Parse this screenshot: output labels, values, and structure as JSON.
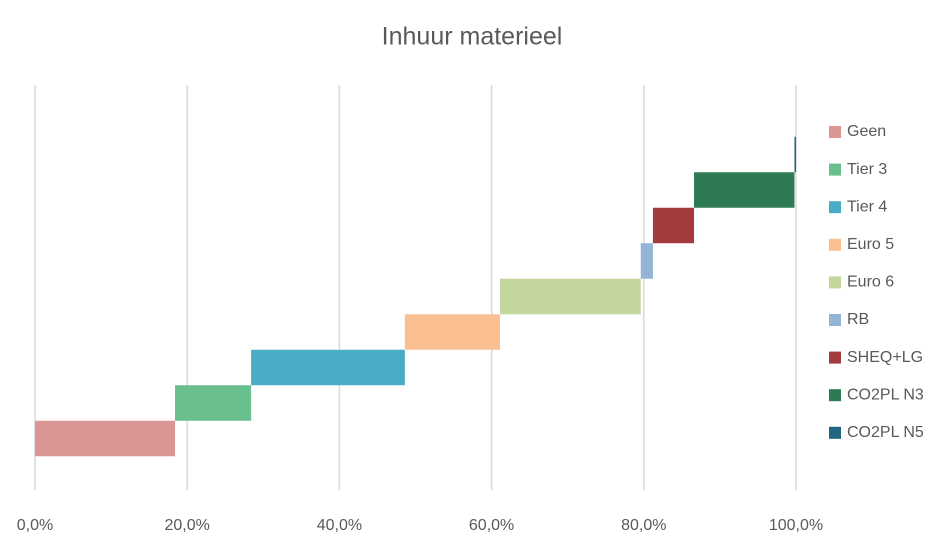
{
  "chart_data": {
    "type": "waterfall",
    "orientation": "horizontal",
    "title": "Inhuur materieel",
    "series": [
      {
        "name": "Geen",
        "color": "#d99694",
        "values": [
          18.4
        ]
      },
      {
        "name": "Tier 3",
        "color": "#6abf8e",
        "values": [
          10.0
        ]
      },
      {
        "name": "Tier 4",
        "color": "#4bacc6",
        "values": [
          20.2
        ]
      },
      {
        "name": "Euro 5",
        "color": "#fac090",
        "values": [
          12.5
        ]
      },
      {
        "name": "Euro 6",
        "color": "#c3d69b",
        "values": [
          18.5
        ]
      },
      {
        "name": "RB",
        "color": "#95b3d7",
        "values": [
          1.6
        ]
      },
      {
        "name": "SHEQ+LG",
        "color": "#a23b3b",
        "values": [
          5.4
        ]
      },
      {
        "name": "CO2PL N3",
        "color": "#2e7a52",
        "values": [
          13.2
        ]
      },
      {
        "name": "CO2PL N5",
        "color": "#1f6680",
        "values": [
          0.2
        ]
      }
    ],
    "xlim": [
      0,
      100
    ],
    "xticks": [
      {
        "value": 0,
        "label": "0,0%"
      },
      {
        "value": 20,
        "label": "20,0%"
      },
      {
        "value": 40,
        "label": "40,0%"
      },
      {
        "value": 60,
        "label": "60,0%"
      },
      {
        "value": 80,
        "label": "80,0%"
      },
      {
        "value": 100,
        "label": "100,0%"
      }
    ],
    "grid": true,
    "legend": "right"
  }
}
